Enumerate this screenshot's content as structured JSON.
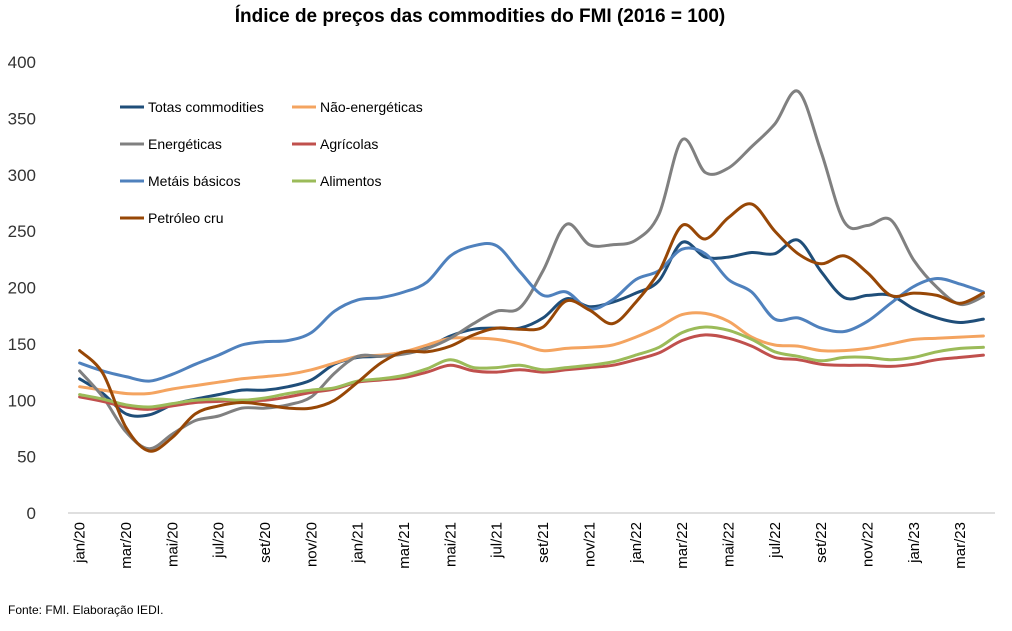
{
  "chart_data": {
    "type": "line",
    "title": "Índice de preços das commodities do FMI  (2016 = 100)",
    "xlabel": "",
    "ylabel": "",
    "ylim": [
      0,
      400
    ],
    "yticks": [
      0,
      50,
      100,
      150,
      200,
      250,
      300,
      350,
      400
    ],
    "grid": false,
    "legend_placement": "top-left",
    "x": [
      "jan/20",
      "fev/20",
      "mar/20",
      "abr/20",
      "mai/20",
      "jun/20",
      "jul/20",
      "ago/20",
      "set/20",
      "out/20",
      "nov/20",
      "dez/20",
      "jan/21",
      "fev/21",
      "mar/21",
      "abr/21",
      "mai/21",
      "jun/21",
      "jul/21",
      "ago/21",
      "set/21",
      "out/21",
      "nov/21",
      "dez/21",
      "jan/22",
      "fev/22",
      "mar/22",
      "abr/22",
      "mai/22",
      "jun/22",
      "jul/22",
      "ago/22",
      "set/22",
      "out/22",
      "nov/22",
      "dez/22",
      "jan/23",
      "fev/23",
      "mar/23",
      "abr/23"
    ],
    "x_tick_labels": [
      "jan/20",
      "mar/20",
      "mai/20",
      "jul/20",
      "set/20",
      "nov/20",
      "jan/21",
      "mar/21",
      "mai/21",
      "jul/21",
      "set/21",
      "nov/21",
      "jan/22",
      "mar/22",
      "mai/22",
      "jul/22",
      "set/22",
      "nov/22",
      "jan/23",
      "mar/23"
    ],
    "series": [
      {
        "name": "Totas commodities",
        "color": "#1F4E79",
        "values": [
          119,
          106,
          88,
          87,
          96,
          101,
          105,
          109,
          109,
          112,
          118,
          132,
          138,
          139,
          143,
          147,
          157,
          163,
          164,
          164,
          173,
          190,
          183,
          187,
          195,
          206,
          240,
          227,
          227,
          231,
          230,
          242,
          214,
          191,
          193,
          193,
          181,
          173,
          169,
          172
        ]
      },
      {
        "name": "Não-energéticas",
        "color": "#F4A460",
        "values": [
          112,
          109,
          106,
          106,
          110,
          113,
          116,
          119,
          121,
          123,
          127,
          133,
          139,
          140,
          143,
          149,
          155,
          155,
          154,
          150,
          144,
          146,
          147,
          149,
          156,
          165,
          176,
          177,
          170,
          156,
          149,
          148,
          144,
          144,
          146,
          150,
          154,
          155,
          156,
          157
        ]
      },
      {
        "name": "Energéticas",
        "color": "#808080",
        "values": [
          126,
          103,
          72,
          57,
          70,
          82,
          86,
          93,
          93,
          96,
          103,
          124,
          139,
          139,
          141,
          146,
          155,
          168,
          179,
          182,
          215,
          256,
          238,
          238,
          242,
          265,
          331,
          302,
          306,
          325,
          345,
          374,
          320,
          258,
          255,
          260,
          224,
          200,
          185,
          192
        ]
      },
      {
        "name": "Agrícolas",
        "color": "#C0504D",
        "values": [
          103,
          99,
          94,
          92,
          95,
          98,
          99,
          100,
          100,
          103,
          107,
          110,
          116,
          118,
          120,
          125,
          131,
          126,
          125,
          127,
          125,
          127,
          129,
          131,
          136,
          142,
          153,
          158,
          155,
          148,
          138,
          136,
          132,
          131,
          131,
          130,
          132,
          136,
          138,
          140
        ]
      },
      {
        "name": "Metáis básicos",
        "color": "#4F81BD",
        "values": [
          133,
          126,
          121,
          117,
          123,
          132,
          140,
          149,
          152,
          153,
          160,
          179,
          189,
          191,
          196,
          205,
          228,
          237,
          237,
          214,
          193,
          196,
          181,
          189,
          207,
          215,
          234,
          230,
          207,
          196,
          172,
          173,
          164,
          161,
          170,
          186,
          201,
          208,
          203,
          196
        ]
      },
      {
        "name": "Alimentos",
        "color": "#9BBB59",
        "values": [
          105,
          101,
          96,
          94,
          97,
          100,
          101,
          100,
          102,
          106,
          109,
          111,
          117,
          119,
          122,
          128,
          136,
          129,
          129,
          131,
          127,
          129,
          131,
          134,
          140,
          147,
          160,
          165,
          162,
          154,
          143,
          139,
          135,
          138,
          138,
          136,
          138,
          143,
          146,
          147
        ]
      },
      {
        "name": "Petróleo cru",
        "color": "#974706",
        "values": [
          144,
          124,
          76,
          55,
          67,
          88,
          95,
          98,
          96,
          93,
          93,
          100,
          116,
          133,
          143,
          143,
          148,
          158,
          164,
          163,
          165,
          188,
          180,
          168,
          187,
          214,
          255,
          243,
          262,
          274,
          250,
          230,
          221,
          228,
          213,
          193,
          195,
          193,
          186,
          195
        ]
      }
    ],
    "source": "Fonte: FMI. Elaboração IEDI."
  }
}
